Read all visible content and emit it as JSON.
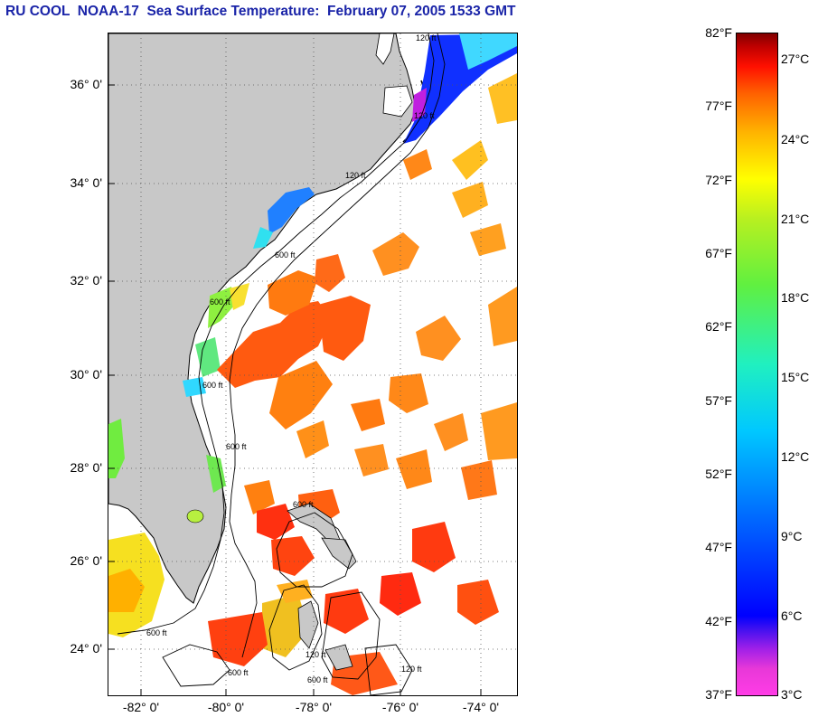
{
  "header": {
    "title": "RU COOL  NOAA-17  Sea Surface Temperature:  February 07, 2005 1533 GMT"
  },
  "map": {
    "latitude_labels": [
      "36° 0'",
      "34° 0'",
      "32° 0'",
      "30° 0'",
      "28° 0'",
      "26° 0'",
      "24° 0'"
    ],
    "longitude_labels": [
      "-82° 0'",
      "-80° 0'",
      "-78° 0'",
      "-76° 0'",
      "-74° 0'"
    ],
    "contour_labels": [
      "120 ft",
      "120 ft",
      "120 ft",
      "600 ft",
      "600 ft",
      "600 ft",
      "600 ft",
      "600 ft",
      "600 ft",
      "600 ft",
      "120 ft",
      "600 ft",
      "120 ft"
    ],
    "land_color": "#c8c8c8",
    "no_data_color": "#ffffff"
  },
  "colorbar": {
    "fahrenheit_labels": [
      "82°F",
      "77°F",
      "72°F",
      "67°F",
      "62°F",
      "57°F",
      "52°F",
      "47°F",
      "42°F",
      "37°F"
    ],
    "celsius_labels": [
      "27°C",
      "24°C",
      "21°C",
      "18°C",
      "15°C",
      "12°C",
      "9°C",
      "6°C",
      "3°C"
    ],
    "range_f": [
      37,
      82
    ],
    "colors": [
      "#ff3ce6",
      "#a020e8",
      "#0000ff",
      "#00c8ff",
      "#60f040",
      "#ffff00",
      "#ff6000",
      "#ff1000",
      "#800000"
    ]
  }
}
